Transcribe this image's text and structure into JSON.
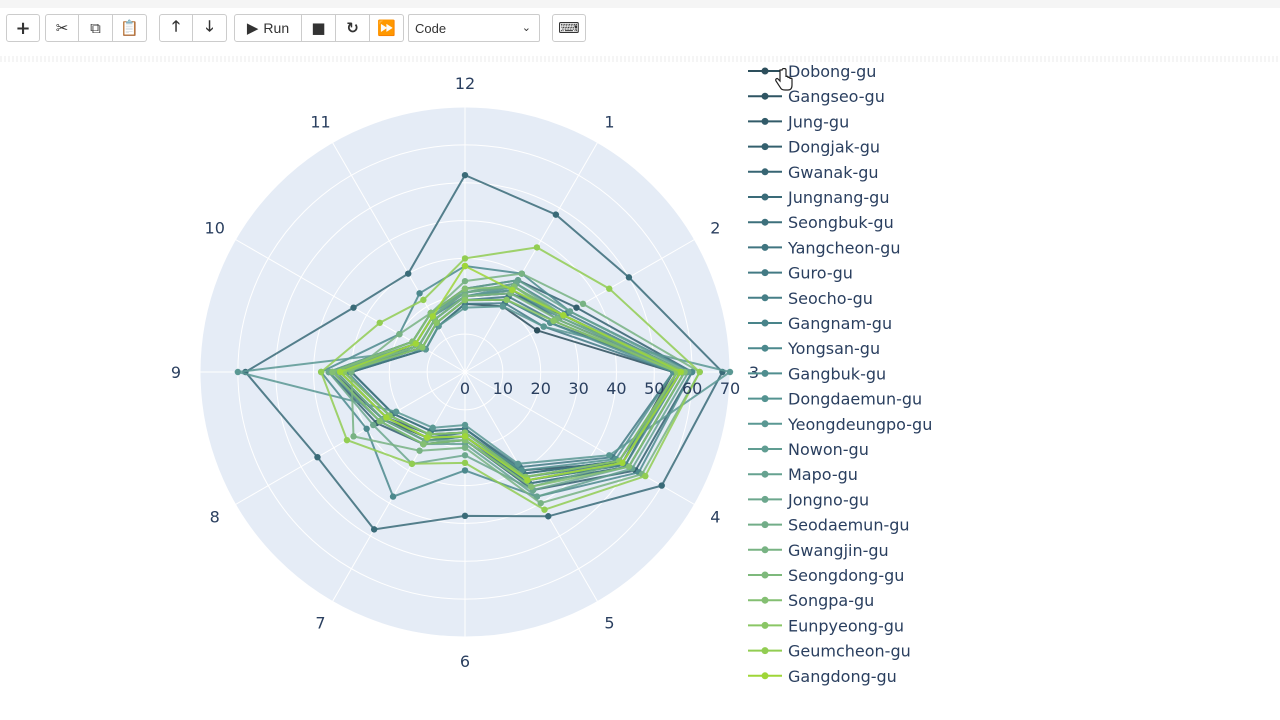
{
  "toolbar": {
    "run_label": "Run",
    "cell_type": "Code",
    "buttons": [
      "plus-icon",
      "cut-icon",
      "copy-icon",
      "paste-icon",
      "arrow-up-icon",
      "arrow-down-icon",
      "run-icon",
      "stop-icon",
      "restart-icon",
      "fast-forward-icon",
      "keyboard-icon"
    ]
  },
  "chart_data": {
    "type": "radar",
    "theta_labels": [
      "1",
      "2",
      "3",
      "4",
      "5",
      "6",
      "7",
      "8",
      "9",
      "10",
      "11",
      "12"
    ],
    "radial_ticks": [
      "0",
      "10",
      "20",
      "30",
      "40",
      "50",
      "60",
      "70"
    ],
    "radial_range": [
      0,
      70
    ],
    "legend_position": "right",
    "series": [
      {
        "name": "Dobong-gu",
        "color": "#2d4f5c",
        "values": [
          20,
          22,
          55,
          48,
          30,
          15,
          18,
          22,
          30,
          12,
          14,
          18
        ]
      },
      {
        "name": "Gangseo-gu",
        "color": "#2f5563",
        "values": [
          24,
          30,
          58,
          50,
          34,
          17,
          20,
          25,
          35,
          14,
          16,
          20
        ]
      },
      {
        "name": "Jung-gu",
        "color": "#325b69",
        "values": [
          22,
          26,
          57,
          47,
          31,
          16,
          19,
          24,
          33,
          13,
          15,
          19
        ]
      },
      {
        "name": "Dongjak-gu",
        "color": "#34606e",
        "values": [
          28,
          34,
          60,
          52,
          36,
          18,
          22,
          27,
          36,
          16,
          18,
          22
        ]
      },
      {
        "name": "Gwanak-gu",
        "color": "#376573",
        "values": [
          26,
          30,
          56,
          49,
          33,
          17,
          21,
          25,
          34,
          15,
          17,
          21
        ]
      },
      {
        "name": "Jungnang-gu",
        "color": "#3a6b78",
        "values": [
          48,
          50,
          68,
          60,
          44,
          38,
          48,
          45,
          58,
          34,
          30,
          52
        ]
      },
      {
        "name": "Seongbuk-gu",
        "color": "#3d707c",
        "values": [
          25,
          28,
          57,
          48,
          32,
          16,
          20,
          24,
          33,
          14,
          16,
          20
        ]
      },
      {
        "name": "Yangcheon-gu",
        "color": "#407580",
        "values": [
          23,
          27,
          56,
          47,
          31,
          16,
          19,
          23,
          32,
          13,
          15,
          19
        ]
      },
      {
        "name": "Guro-gu",
        "color": "#437a84",
        "values": [
          21,
          24,
          55,
          45,
          29,
          15,
          18,
          22,
          30,
          12,
          14,
          18
        ]
      },
      {
        "name": "Seocho-gu",
        "color": "#467f87",
        "values": [
          27,
          31,
          58,
          50,
          34,
          18,
          22,
          26,
          36,
          16,
          18,
          21
        ]
      },
      {
        "name": "Gangnam-gu",
        "color": "#49848a",
        "values": [
          24,
          29,
          57,
          49,
          33,
          17,
          21,
          25,
          34,
          15,
          17,
          20
        ]
      },
      {
        "name": "Yongsan-gu",
        "color": "#4c898d",
        "values": [
          30,
          32,
          60,
          53,
          38,
          26,
          38,
          30,
          38,
          20,
          24,
          28
        ]
      },
      {
        "name": "Gangbuk-gu",
        "color": "#508e8f",
        "values": [
          26,
          30,
          56,
          48,
          33,
          17,
          20,
          24,
          33,
          14,
          16,
          20
        ]
      },
      {
        "name": "Dongdaemun-gu",
        "color": "#549391",
        "values": [
          22,
          26,
          55,
          46,
          30,
          16,
          19,
          23,
          31,
          13,
          15,
          19
        ]
      },
      {
        "name": "Yeongdeungpo-gu",
        "color": "#5a9893",
        "values": [
          20,
          24,
          70,
          44,
          28,
          14,
          17,
          21,
          60,
          12,
          14,
          17
        ]
      },
      {
        "name": "Nowon-gu",
        "color": "#609d92",
        "values": [
          25,
          29,
          57,
          47,
          32,
          17,
          20,
          24,
          33,
          14,
          16,
          20
        ]
      },
      {
        "name": "Mapo-gu",
        "color": "#66a290",
        "values": [
          28,
          32,
          59,
          51,
          38,
          19,
          22,
          26,
          35,
          15,
          17,
          22
        ]
      },
      {
        "name": "Jongno-gu",
        "color": "#6ca78d",
        "values": [
          27,
          30,
          58,
          50,
          36,
          22,
          28,
          28,
          36,
          16,
          18,
          21
        ]
      },
      {
        "name": "Seodaemun-gu",
        "color": "#72ad88",
        "values": [
          26,
          29,
          57,
          48,
          35,
          18,
          21,
          25,
          34,
          15,
          17,
          21
        ]
      },
      {
        "name": "Gwangjin-gu",
        "color": "#78b383",
        "values": [
          30,
          36,
          62,
          54,
          40,
          20,
          24,
          34,
          30,
          20,
          18,
          24
        ]
      },
      {
        "name": "Seongdong-gu",
        "color": "#7eb97c",
        "values": [
          24,
          28,
          56,
          48,
          33,
          17,
          20,
          24,
          33,
          14,
          16,
          20
        ]
      },
      {
        "name": "Songpa-gu",
        "color": "#84bf72",
        "values": [
          26,
          30,
          58,
          50,
          35,
          18,
          22,
          26,
          35,
          16,
          18,
          22
        ]
      },
      {
        "name": "Eunpyeong-gu",
        "color": "#8ac665",
        "values": [
          22,
          27,
          56,
          47,
          32,
          16,
          19,
          23,
          32,
          13,
          15,
          19
        ]
      },
      {
        "name": "Geumcheon-gu",
        "color": "#92cd52",
        "values": [
          38,
          44,
          62,
          55,
          42,
          24,
          28,
          36,
          38,
          26,
          22,
          30
        ]
      },
      {
        "name": "Gangdong-gu",
        "color": "#9fd638",
        "values": [
          25,
          30,
          57,
          48,
          33,
          17,
          20,
          24,
          33,
          15,
          17,
          28
        ]
      }
    ]
  }
}
